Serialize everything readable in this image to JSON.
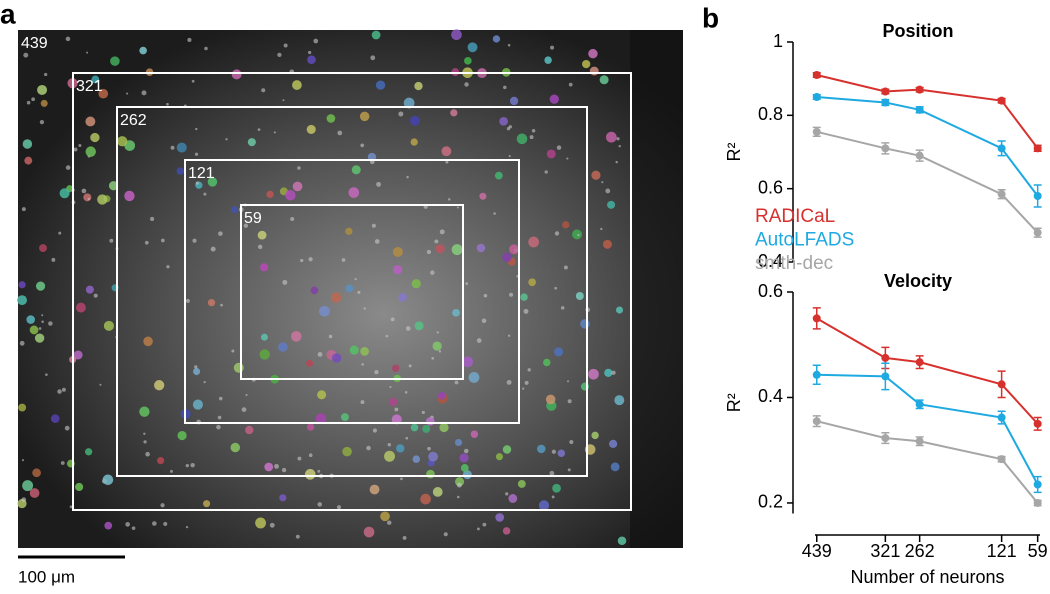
{
  "panel_a": {
    "label": "a",
    "regions": [
      {
        "label": "439"
      },
      {
        "label": "321"
      },
      {
        "label": "262"
      },
      {
        "label": "121"
      },
      {
        "label": "59"
      }
    ],
    "scale_bar": "100 μm"
  },
  "panel_b": {
    "label": "b",
    "x_label": "Number of neurons",
    "y_label": "R²"
  },
  "chart_data": [
    {
      "type": "line",
      "title": "Position",
      "x": [
        439,
        321,
        262,
        121,
        59
      ],
      "xlim": [
        442,
        55
      ],
      "ylim": [
        0.4,
        1
      ],
      "yticks": [
        0.4,
        0.6,
        0.8,
        1
      ],
      "series": [
        {
          "name": "RADICaL",
          "color": "#d7312e",
          "values": [
            0.91,
            0.865,
            0.87,
            0.84,
            0.71
          ],
          "errors": [
            0.006,
            0.006,
            0.006,
            0.006,
            0.008
          ]
        },
        {
          "name": "AutoLFADS",
          "color": "#1ea9e1",
          "values": [
            0.85,
            0.835,
            0.815,
            0.71,
            0.58
          ],
          "errors": [
            0.006,
            0.008,
            0.008,
            0.02,
            0.03
          ]
        },
        {
          "name": "smth-dec",
          "color": "#a6a6a6",
          "values": [
            0.755,
            0.71,
            0.69,
            0.585,
            0.48
          ],
          "errors": [
            0.012,
            0.015,
            0.015,
            0.012,
            0.012
          ]
        }
      ]
    },
    {
      "type": "line",
      "title": "Velocity",
      "x": [
        439,
        321,
        262,
        121,
        59
      ],
      "xlim": [
        442,
        55
      ],
      "xticks": [
        439,
        321,
        262,
        121,
        59
      ],
      "ylim": [
        0.18,
        0.6
      ],
      "yticks": [
        0.2,
        0.4,
        0.6
      ],
      "series": [
        {
          "color": "#d7312e",
          "values": [
            0.55,
            0.475,
            0.467,
            0.425,
            0.35
          ],
          "errors": [
            0.02,
            0.02,
            0.012,
            0.025,
            0.012
          ]
        },
        {
          "color": "#1ea9e1",
          "values": [
            0.443,
            0.44,
            0.387,
            0.362,
            0.235
          ],
          "errors": [
            0.018,
            0.025,
            0.008,
            0.012,
            0.015
          ]
        },
        {
          "color": "#a6a6a6",
          "values": [
            0.355,
            0.323,
            0.317,
            0.283,
            0.2
          ],
          "errors": [
            0.01,
            0.01,
            0.008,
            0.005,
            0.005
          ]
        }
      ]
    }
  ]
}
